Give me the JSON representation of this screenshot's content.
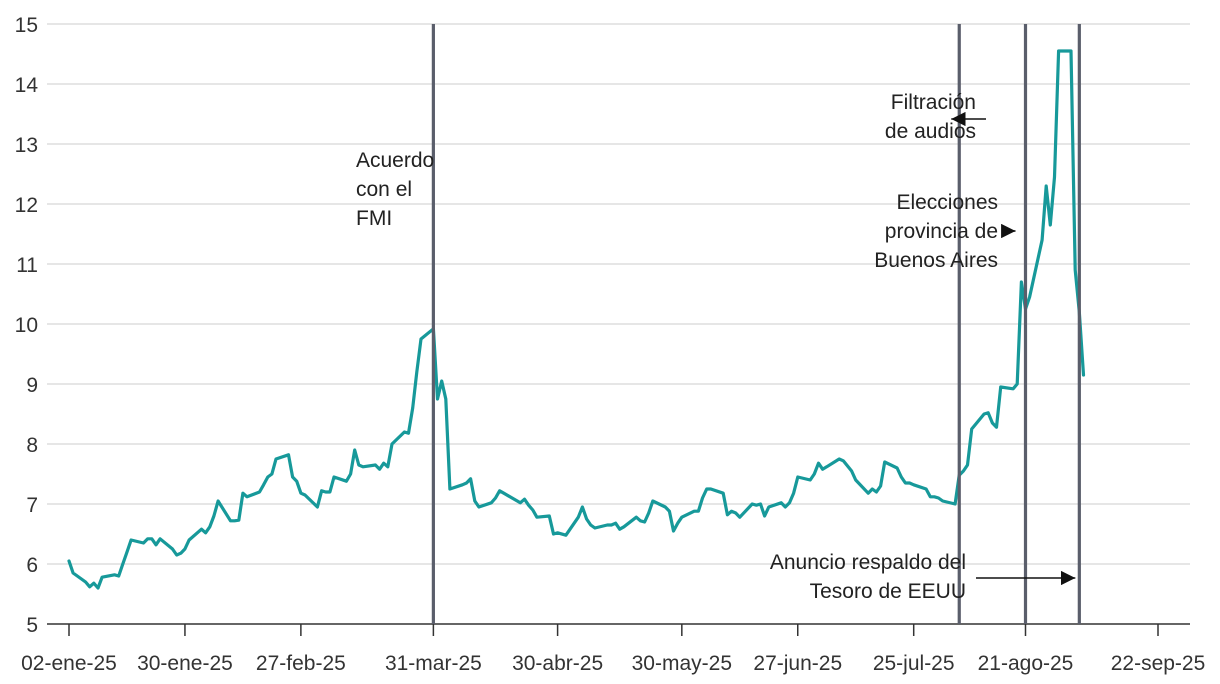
{
  "chart_data": {
    "type": "line",
    "title": "",
    "xlabel": "",
    "ylabel": "",
    "ylim": [
      5,
      15
    ],
    "y_ticks": [
      5,
      6,
      7,
      8,
      9,
      10,
      11,
      12,
      13,
      14,
      15
    ],
    "x_range": [
      "2025-01-02",
      "2025-09-30"
    ],
    "x_ticks": [
      {
        "date": "2025-01-02",
        "label": "02-ene-25"
      },
      {
        "date": "2025-01-30",
        "label": "30-ene-25"
      },
      {
        "date": "2025-02-27",
        "label": "27-feb-25"
      },
      {
        "date": "2025-03-31",
        "label": "31-mar-25"
      },
      {
        "date": "2025-04-30",
        "label": "30-abr-25"
      },
      {
        "date": "2025-05-30",
        "label": "30-may-25"
      },
      {
        "date": "2025-06-27",
        "label": "27-jun-25"
      },
      {
        "date": "2025-07-25",
        "label": "25-jul-25"
      },
      {
        "date": "2025-08-21",
        "label": "21-ago-25"
      },
      {
        "date": "2025-09-22",
        "label": "22-sep-25"
      }
    ],
    "grid": "horizontal",
    "colors": {
      "line": "#17999a",
      "event_line": "#5a5e6b",
      "grid": "#d6d6d6",
      "axis": "#333333"
    },
    "series": [
      {
        "points": [
          [
            "2025-01-02",
            6.05
          ],
          [
            "2025-01-03",
            5.85
          ],
          [
            "2025-01-06",
            5.7
          ],
          [
            "2025-01-07",
            5.62
          ],
          [
            "2025-01-08",
            5.68
          ],
          [
            "2025-01-09",
            5.6
          ],
          [
            "2025-01-10",
            5.78
          ],
          [
            "2025-01-13",
            5.82
          ],
          [
            "2025-01-14",
            5.8
          ],
          [
            "2025-01-15",
            6.0
          ],
          [
            "2025-01-16",
            6.2
          ],
          [
            "2025-01-17",
            6.4
          ],
          [
            "2025-01-20",
            6.35
          ],
          [
            "2025-01-21",
            6.42
          ],
          [
            "2025-01-22",
            6.42
          ],
          [
            "2025-01-23",
            6.32
          ],
          [
            "2025-01-24",
            6.42
          ],
          [
            "2025-01-27",
            6.25
          ],
          [
            "2025-01-28",
            6.15
          ],
          [
            "2025-01-29",
            6.18
          ],
          [
            "2025-01-30",
            6.25
          ],
          [
            "2025-01-31",
            6.4
          ],
          [
            "2025-02-03",
            6.58
          ],
          [
            "2025-02-04",
            6.52
          ],
          [
            "2025-02-05",
            6.62
          ],
          [
            "2025-02-06",
            6.8
          ],
          [
            "2025-02-07",
            7.05
          ],
          [
            "2025-02-10",
            6.72
          ],
          [
            "2025-02-11",
            6.72
          ],
          [
            "2025-02-12",
            6.73
          ],
          [
            "2025-02-13",
            7.18
          ],
          [
            "2025-02-14",
            7.12
          ],
          [
            "2025-02-17",
            7.2
          ],
          [
            "2025-02-18",
            7.32
          ],
          [
            "2025-02-19",
            7.45
          ],
          [
            "2025-02-20",
            7.5
          ],
          [
            "2025-02-21",
            7.75
          ],
          [
            "2025-02-24",
            7.82
          ],
          [
            "2025-02-25",
            7.45
          ],
          [
            "2025-02-26",
            7.38
          ],
          [
            "2025-02-27",
            7.18
          ],
          [
            "2025-02-28",
            7.15
          ],
          [
            "2025-03-03",
            6.95
          ],
          [
            "2025-03-04",
            7.22
          ],
          [
            "2025-03-05",
            7.2
          ],
          [
            "2025-03-06",
            7.2
          ],
          [
            "2025-03-07",
            7.45
          ],
          [
            "2025-03-10",
            7.38
          ],
          [
            "2025-03-11",
            7.5
          ],
          [
            "2025-03-12",
            7.9
          ],
          [
            "2025-03-13",
            7.65
          ],
          [
            "2025-03-14",
            7.62
          ],
          [
            "2025-03-17",
            7.65
          ],
          [
            "2025-03-18",
            7.58
          ],
          [
            "2025-03-19",
            7.68
          ],
          [
            "2025-03-20",
            7.62
          ],
          [
            "2025-03-21",
            8.0
          ],
          [
            "2025-03-24",
            8.2
          ],
          [
            "2025-03-25",
            8.18
          ],
          [
            "2025-03-26",
            8.6
          ],
          [
            "2025-03-27",
            9.2
          ],
          [
            "2025-03-28",
            9.75
          ],
          [
            "2025-03-31",
            9.92
          ],
          [
            "2025-04-01",
            8.75
          ],
          [
            "2025-04-02",
            9.05
          ],
          [
            "2025-04-03",
            8.75
          ],
          [
            "2025-04-04",
            7.25
          ],
          [
            "2025-04-07",
            7.32
          ],
          [
            "2025-04-08",
            7.35
          ],
          [
            "2025-04-09",
            7.42
          ],
          [
            "2025-04-10",
            7.05
          ],
          [
            "2025-04-11",
            6.95
          ],
          [
            "2025-04-14",
            7.02
          ],
          [
            "2025-04-15",
            7.1
          ],
          [
            "2025-04-16",
            7.22
          ],
          [
            "2025-04-17",
            7.18
          ],
          [
            "2025-04-21",
            7.02
          ],
          [
            "2025-04-22",
            7.08
          ],
          [
            "2025-04-23",
            6.98
          ],
          [
            "2025-04-24",
            6.9
          ],
          [
            "2025-04-25",
            6.78
          ],
          [
            "2025-04-28",
            6.8
          ],
          [
            "2025-04-29",
            6.5
          ],
          [
            "2025-04-30",
            6.52
          ],
          [
            "2025-05-02",
            6.48
          ],
          [
            "2025-05-05",
            6.78
          ],
          [
            "2025-05-06",
            6.95
          ],
          [
            "2025-05-07",
            6.75
          ],
          [
            "2025-05-08",
            6.65
          ],
          [
            "2025-05-09",
            6.6
          ],
          [
            "2025-05-12",
            6.65
          ],
          [
            "2025-05-13",
            6.65
          ],
          [
            "2025-05-14",
            6.68
          ],
          [
            "2025-05-15",
            6.58
          ],
          [
            "2025-05-16",
            6.62
          ],
          [
            "2025-05-19",
            6.78
          ],
          [
            "2025-05-20",
            6.72
          ],
          [
            "2025-05-21",
            6.7
          ],
          [
            "2025-05-22",
            6.85
          ],
          [
            "2025-05-23",
            7.05
          ],
          [
            "2025-05-26",
            6.95
          ],
          [
            "2025-05-27",
            6.88
          ],
          [
            "2025-05-28",
            6.55
          ],
          [
            "2025-05-29",
            6.68
          ],
          [
            "2025-05-30",
            6.78
          ],
          [
            "2025-06-02",
            6.88
          ],
          [
            "2025-06-03",
            6.88
          ],
          [
            "2025-06-04",
            7.1
          ],
          [
            "2025-06-05",
            7.25
          ],
          [
            "2025-06-06",
            7.25
          ],
          [
            "2025-06-09",
            7.18
          ],
          [
            "2025-06-10",
            6.82
          ],
          [
            "2025-06-11",
            6.88
          ],
          [
            "2025-06-12",
            6.85
          ],
          [
            "2025-06-13",
            6.78
          ],
          [
            "2025-06-16",
            7.0
          ],
          [
            "2025-06-17",
            6.98
          ],
          [
            "2025-06-18",
            7.0
          ],
          [
            "2025-06-19",
            6.8
          ],
          [
            "2025-06-20",
            6.95
          ],
          [
            "2025-06-23",
            7.02
          ],
          [
            "2025-06-24",
            6.95
          ],
          [
            "2025-06-25",
            7.02
          ],
          [
            "2025-06-26",
            7.18
          ],
          [
            "2025-06-27",
            7.45
          ],
          [
            "2025-06-30",
            7.4
          ],
          [
            "2025-07-01",
            7.5
          ],
          [
            "2025-07-02",
            7.68
          ],
          [
            "2025-07-03",
            7.58
          ],
          [
            "2025-07-04",
            7.62
          ],
          [
            "2025-07-07",
            7.75
          ],
          [
            "2025-07-08",
            7.72
          ],
          [
            "2025-07-10",
            7.55
          ],
          [
            "2025-07-11",
            7.4
          ],
          [
            "2025-07-14",
            7.18
          ],
          [
            "2025-07-15",
            7.25
          ],
          [
            "2025-07-16",
            7.2
          ],
          [
            "2025-07-17",
            7.3
          ],
          [
            "2025-07-18",
            7.7
          ],
          [
            "2025-07-21",
            7.6
          ],
          [
            "2025-07-22",
            7.45
          ],
          [
            "2025-07-23",
            7.35
          ],
          [
            "2025-07-24",
            7.35
          ],
          [
            "2025-07-25",
            7.32
          ],
          [
            "2025-07-28",
            7.25
          ],
          [
            "2025-07-29",
            7.12
          ],
          [
            "2025-07-30",
            7.12
          ],
          [
            "2025-07-31",
            7.1
          ],
          [
            "2025-08-01",
            7.05
          ],
          [
            "2025-08-04",
            7.0
          ],
          [
            "2025-08-05",
            7.48
          ],
          [
            "2025-08-06",
            7.55
          ],
          [
            "2025-08-07",
            7.65
          ],
          [
            "2025-08-08",
            8.25
          ],
          [
            "2025-08-11",
            8.5
          ],
          [
            "2025-08-12",
            8.52
          ],
          [
            "2025-08-13",
            8.35
          ],
          [
            "2025-08-14",
            8.28
          ],
          [
            "2025-08-15",
            8.95
          ],
          [
            "2025-08-18",
            8.92
          ],
          [
            "2025-08-19",
            9.0
          ],
          [
            "2025-08-20",
            10.7
          ],
          [
            "2025-08-21",
            10.25
          ],
          [
            "2025-08-22",
            10.45
          ],
          [
            "2025-08-25",
            11.4
          ],
          [
            "2025-08-26",
            12.3
          ],
          [
            "2025-08-27",
            11.65
          ],
          [
            "2025-08-28",
            12.45
          ],
          [
            "2025-08-29",
            14.55
          ],
          [
            "2025-09-01",
            14.55
          ],
          [
            "2025-09-02",
            10.9
          ],
          [
            "2025-09-03",
            10.2
          ],
          [
            "2025-09-04",
            9.15
          ]
        ]
      }
    ],
    "event_lines": [
      {
        "date": "2025-03-31"
      },
      {
        "date": "2025-08-05"
      },
      {
        "date": "2025-08-21"
      },
      {
        "date": "2025-09-03"
      }
    ],
    "annotations": [
      {
        "lines": [
          "Acuerdo",
          "con el",
          "FMI"
        ],
        "anchor": "start",
        "arrow": false
      },
      {
        "lines": [
          "Filtración",
          "de audios"
        ],
        "anchor": "end",
        "arrow": true
      },
      {
        "lines": [
          "Elecciones",
          "provincia de",
          "Buenos Aires"
        ],
        "anchor": "end",
        "arrow": true
      },
      {
        "lines": [
          "Anuncio respaldo del",
          "Tesoro de EEUU"
        ],
        "anchor": "end",
        "arrow": true
      }
    ]
  }
}
